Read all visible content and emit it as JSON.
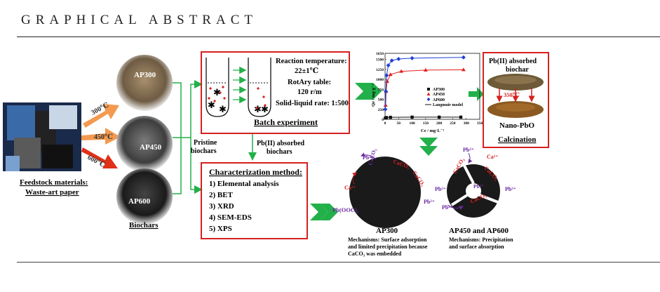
{
  "header": {
    "title": "GRAPHICAL ABSTRACT"
  },
  "feedstock": {
    "label_line1": "Feedstock materials:",
    "label_line2": "Waste-art paper"
  },
  "temperatures": [
    "300℃",
    "450℃",
    "600℃"
  ],
  "samples": [
    "AP300",
    "AP450",
    "AP600"
  ],
  "biochars_label": "Biochars",
  "pristine_label_line1": "Pristine",
  "pristine_label_line2": "biochars",
  "batch": {
    "lines": [
      "Reaction temperature:",
      "22±1℃",
      "RotAry table:",
      "120 r/m",
      "Solid-liquid rate: 1:500"
    ],
    "title": "Batch experiment"
  },
  "absorbed_label_line1": "Pb(II) absorbed",
  "absorbed_label_line2": "biochars",
  "characterization": {
    "title": "Characterization method:",
    "items": [
      "1) Elemental analysis",
      "2) BET",
      "3) XRD",
      "4) SEM-EDS",
      "5) XPS"
    ]
  },
  "chart_data": {
    "type": "scatter",
    "xlabel": "Ce / mg·L⁻¹",
    "ylabel": "Qe / mg·g⁻¹",
    "xlim": [
      0,
      350
    ],
    "ylim": [
      0,
      1650
    ],
    "xticks": [
      0,
      50,
      100,
      150,
      200,
      250,
      300,
      350
    ],
    "yticks": [
      0,
      250,
      500,
      750,
      1000,
      1250,
      1500,
      1650
    ],
    "legend_position": "center-right",
    "legend": [
      "AP300",
      "AP450",
      "AP600",
      "Langmuir model"
    ],
    "series": [
      {
        "name": "AP300",
        "color": "#111111",
        "marker": "square",
        "x": [
          1,
          5,
          20,
          100,
          200,
          280
        ],
        "y": [
          30,
          45,
          50,
          55,
          55,
          55
        ]
      },
      {
        "name": "AP450",
        "color": "#e02020",
        "marker": "triangle",
        "x": [
          2,
          4,
          8,
          20,
          60,
          150,
          290
        ],
        "y": [
          350,
          700,
          950,
          1120,
          1200,
          1230,
          1240
        ]
      },
      {
        "name": "AP600",
        "color": "#1f3fd6",
        "marker": "diamond",
        "x": [
          1,
          3,
          6,
          12,
          25,
          50,
          100,
          290
        ],
        "y": [
          250,
          700,
          1100,
          1350,
          1470,
          1510,
          1530,
          1550
        ]
      }
    ]
  },
  "calcination": {
    "title_line1": "Pb(II) absorbed",
    "title_line2": "biochar",
    "temp": "350℃",
    "product": "Nano-PbO",
    "caption": "Calcination"
  },
  "mechanism_ap300": {
    "title": "AP300",
    "desc_line1": "Mechanisms: Surface adsorption",
    "desc_line2": "and limited precipitation because",
    "desc_line3": "CaCO₃ was embedded",
    "labels": [
      "Pb²⁺",
      "CaCO₃",
      "CaCO₃",
      "CaCO₃",
      "Ca²⁺",
      "Pb²⁺",
      "Pb(OOC)₂"
    ]
  },
  "mechanism_ap450": {
    "title": "AP450 and AP600",
    "desc_line1": "Mechanisms: Precipitation",
    "desc_line2": "and surface absorption",
    "labels": [
      "Pb²⁺",
      "CaCO₃",
      "Ca²⁺",
      "CaCO₃",
      "Pb²⁺",
      "Pb²⁺",
      "Pb²⁺",
      "CaCO₃",
      "Pb²⁺"
    ]
  },
  "colors": {
    "frame": "#d62020",
    "arrow": "#22b04a",
    "orange": "#f39a50",
    "pb": "#6a2aa0",
    "ca": "#d62020"
  }
}
